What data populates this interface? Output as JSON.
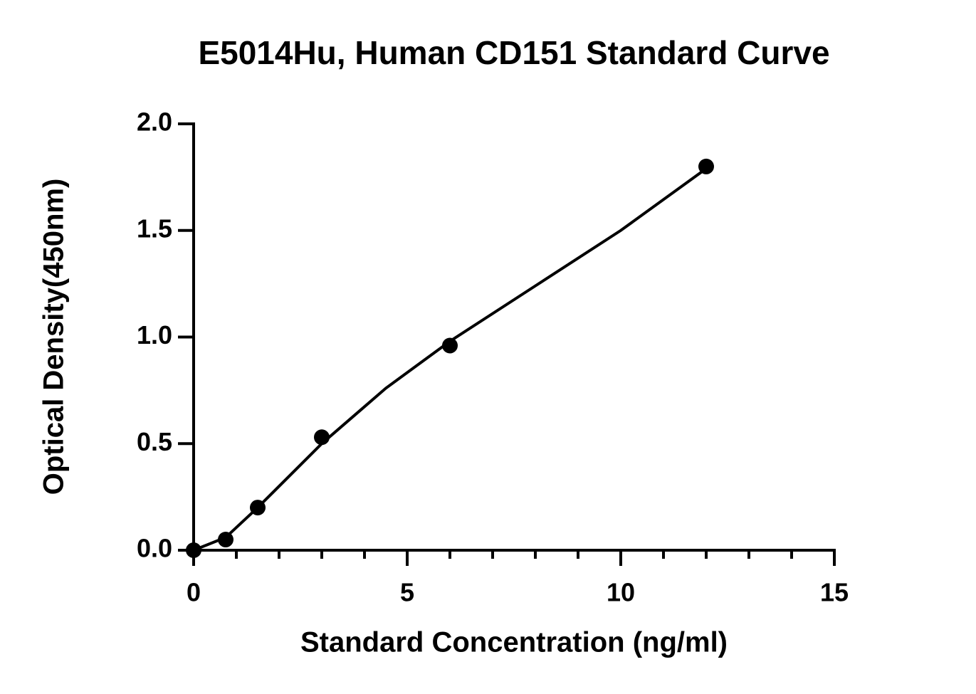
{
  "chart_data": {
    "type": "scatter",
    "title": "E5014Hu, Human CD151 Standard Curve",
    "xlabel": "Standard Concentration (ng/ml)",
    "ylabel": "Optical Density(450nm)",
    "x": [
      0,
      0.75,
      1.5,
      3,
      6,
      12
    ],
    "values": [
      0.0,
      0.05,
      0.2,
      0.53,
      0.96,
      1.8
    ],
    "color": "#000000",
    "fit": {
      "x": [
        0,
        0.75,
        1.5,
        3,
        4.5,
        6,
        8,
        10,
        12
      ],
      "values": [
        0.0,
        0.06,
        0.2,
        0.5,
        0.76,
        0.98,
        1.24,
        1.5,
        1.79
      ]
    },
    "xlim": [
      0,
      15
    ],
    "ylim": [
      0,
      2
    ],
    "xticks": [
      0,
      5,
      10,
      15
    ],
    "xminorticks": [
      1,
      2,
      3,
      4,
      6,
      7,
      8,
      9,
      11,
      12,
      13,
      14
    ],
    "yticks": [
      {
        "value": 0,
        "label": "0.0"
      },
      {
        "value": 0.5,
        "label": "0.5"
      },
      {
        "value": 1,
        "label": "1.0"
      },
      {
        "value": 1.5,
        "label": "1.5"
      },
      {
        "value": 2,
        "label": "2.0"
      }
    ]
  }
}
